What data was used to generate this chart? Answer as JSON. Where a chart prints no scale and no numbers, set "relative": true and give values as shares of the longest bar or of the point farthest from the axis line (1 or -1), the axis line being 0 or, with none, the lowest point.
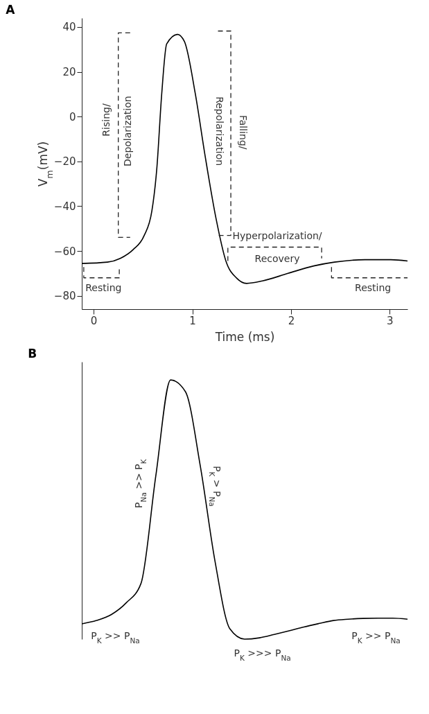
{
  "chart_data": [
    {
      "type": "line",
      "title": "A",
      "xlabel": "Time (ms)",
      "ylabel": "V$_{m}$(mV)",
      "color": "#000000",
      "line_style": "solid",
      "x": [
        -0.12,
        0.14,
        0.27,
        0.4,
        0.51,
        0.59,
        0.64,
        0.69,
        0.74,
        0.85,
        0.92,
        1.03,
        1.13,
        1.24,
        1.34,
        1.45,
        1.55,
        1.71,
        1.97,
        2.23,
        2.44,
        2.75,
        3.01,
        3.18
      ],
      "values": [
        -65.6,
        -65,
        -63.3,
        -59.4,
        -53.3,
        -42.2,
        -23.3,
        10.2,
        32.4,
        36.7,
        33.5,
        10.2,
        -17.7,
        -45.5,
        -64.5,
        -72.2,
        -74.5,
        -73.4,
        -70,
        -66.7,
        -65,
        -63.9,
        -63.9,
        -64.5
      ],
      "xlim": [
        -0.12,
        3.18
      ],
      "ylim": [
        -86,
        44
      ],
      "xticks": [
        0,
        1,
        2,
        3
      ],
      "yticks": [
        -80,
        -60,
        -40,
        -20,
        0,
        20,
        40
      ],
      "annotations": [
        "Resting",
        "Rising/",
        "Depolarization",
        "Falling/",
        "Repolarization",
        "Hyperpolarization/",
        "Recovery",
        "Resting"
      ]
    },
    {
      "type": "line",
      "title": "B",
      "color": "#000000",
      "line_style": "solid",
      "relative": true,
      "categories": [
        null,
        null,
        null,
        null,
        null,
        null,
        null,
        null,
        null,
        null,
        null,
        null,
        null,
        null,
        null,
        null,
        null,
        null,
        null,
        null,
        null,
        null,
        null
      ],
      "values": [
        0.059,
        0.072,
        0.095,
        0.14,
        0.215,
        0.63,
        1,
        0.955,
        0.67,
        0.3,
        0.04,
        0,
        0.005,
        0.018,
        0.032,
        0.047,
        0.06,
        0.072,
        0.077,
        0.08,
        0.081,
        0.081,
        0.077
      ],
      "annotations": [
        "P$_{Na}$ >> P$_{K}$",
        "P$_{K}$ > P$_{Na}$",
        "P$_{K}$ >> P$_{Na}$",
        "P$_{K}$ >>> P$_{Na}$",
        "P$_{K}$ >> P$_{Na}$"
      ]
    }
  ]
}
